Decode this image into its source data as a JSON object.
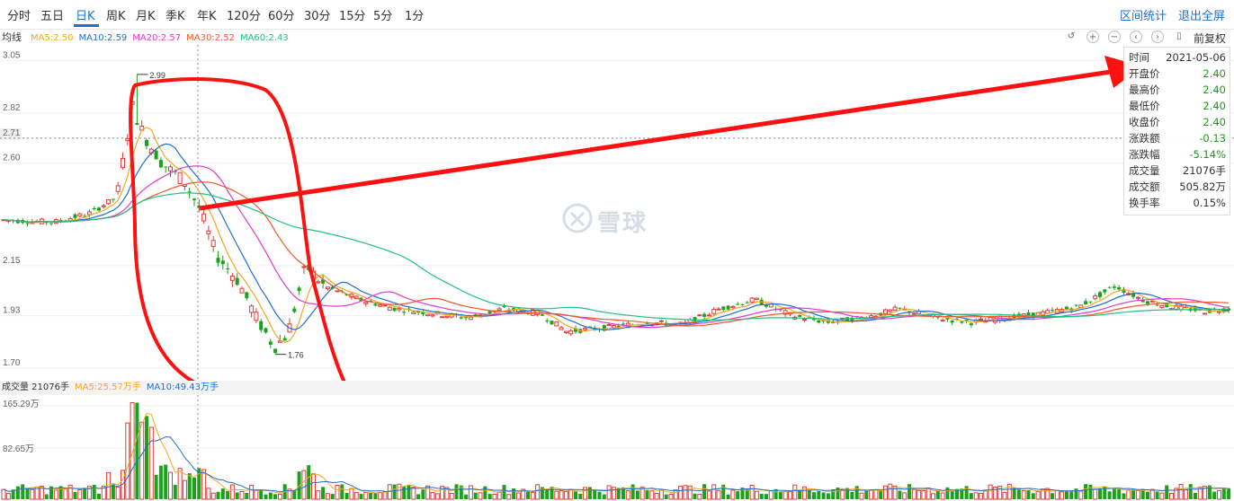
{
  "toolbar": {
    "periods": [
      "分时",
      "五日",
      "日K",
      "周K",
      "月K",
      "季K",
      "年K",
      "120分",
      "60分",
      "30分",
      "15分",
      "5分",
      "1分"
    ],
    "active_period": "日K",
    "interval_stats": "区间统计",
    "exit_fullscreen": "退出全屏"
  },
  "ma_bar": {
    "label": "均线",
    "items": [
      {
        "text": "MA5:2.50",
        "color": "#f5a623"
      },
      {
        "text": "MA10:2.59",
        "color": "#1f6fd0"
      },
      {
        "text": "MA20:2.57",
        "color": "#e23ad0"
      },
      {
        "text": "MA30:2.52",
        "color": "#f2592a"
      },
      {
        "text": "MA60:2.43",
        "color": "#20c080"
      }
    ]
  },
  "controls": {
    "icons": [
      "undo-icon",
      "zoom-in-icon",
      "zoom-out-icon",
      "scroll-left-icon",
      "scroll-right-icon",
      "fullscreen-icon"
    ],
    "adjust": "前复权"
  },
  "price_axis": [
    "3.05",
    "2.82",
    "2.71",
    "2.60",
    "2.15",
    "1.93",
    "1.70"
  ],
  "chart_labels": {
    "high": "2.99",
    "low": "1.76"
  },
  "tooltip": {
    "rows": [
      {
        "k": "时间",
        "v": "2021-05-06",
        "color": "#333333"
      },
      {
        "k": "开盘价",
        "v": "2.40",
        "color": "#1a9a1a"
      },
      {
        "k": "最高价",
        "v": "2.40",
        "color": "#1a9a1a"
      },
      {
        "k": "最低价",
        "v": "2.40",
        "color": "#1a9a1a"
      },
      {
        "k": "收盘价",
        "v": "2.40",
        "color": "#1a9a1a"
      },
      {
        "k": "涨跌额",
        "v": "-0.13",
        "color": "#1a9a1a"
      },
      {
        "k": "涨跌幅",
        "v": "-5.14%",
        "color": "#1a9a1a"
      },
      {
        "k": "成交量",
        "v": "21076手",
        "color": "#333333"
      },
      {
        "k": "成交额",
        "v": "505.82万",
        "color": "#333333"
      },
      {
        "k": "换手率",
        "v": "0.15%",
        "color": "#333333"
      }
    ]
  },
  "volume_bar": {
    "label": "成交量 21076手",
    "items": [
      {
        "text": "MA5:25.57万手",
        "color": "#f5a623"
      },
      {
        "text": "MA10:49.43万手",
        "color": "#1f6fd0"
      }
    ]
  },
  "volume_axis": [
    "165.29万",
    "82.65万"
  ],
  "watermark": "雪球",
  "colors": {
    "up": "#e33a3a",
    "down": "#1aa31a",
    "accent": "#1f6fd0",
    "annotation": "#ff1010"
  },
  "chart_data": {
    "type": "candlestick",
    "price_ticks": [
      3.05,
      2.82,
      2.71,
      2.6,
      2.15,
      1.93,
      1.7
    ],
    "annotated_high": 2.99,
    "annotated_low": 1.76,
    "crosshair_price": 2.71,
    "series": [
      "MA5",
      "MA10",
      "MA20",
      "MA30",
      "MA60"
    ],
    "ma_latest": {
      "MA5": 2.5,
      "MA10": 2.59,
      "MA20": 2.57,
      "MA30": 2.52,
      "MA60": 2.43
    }
  }
}
